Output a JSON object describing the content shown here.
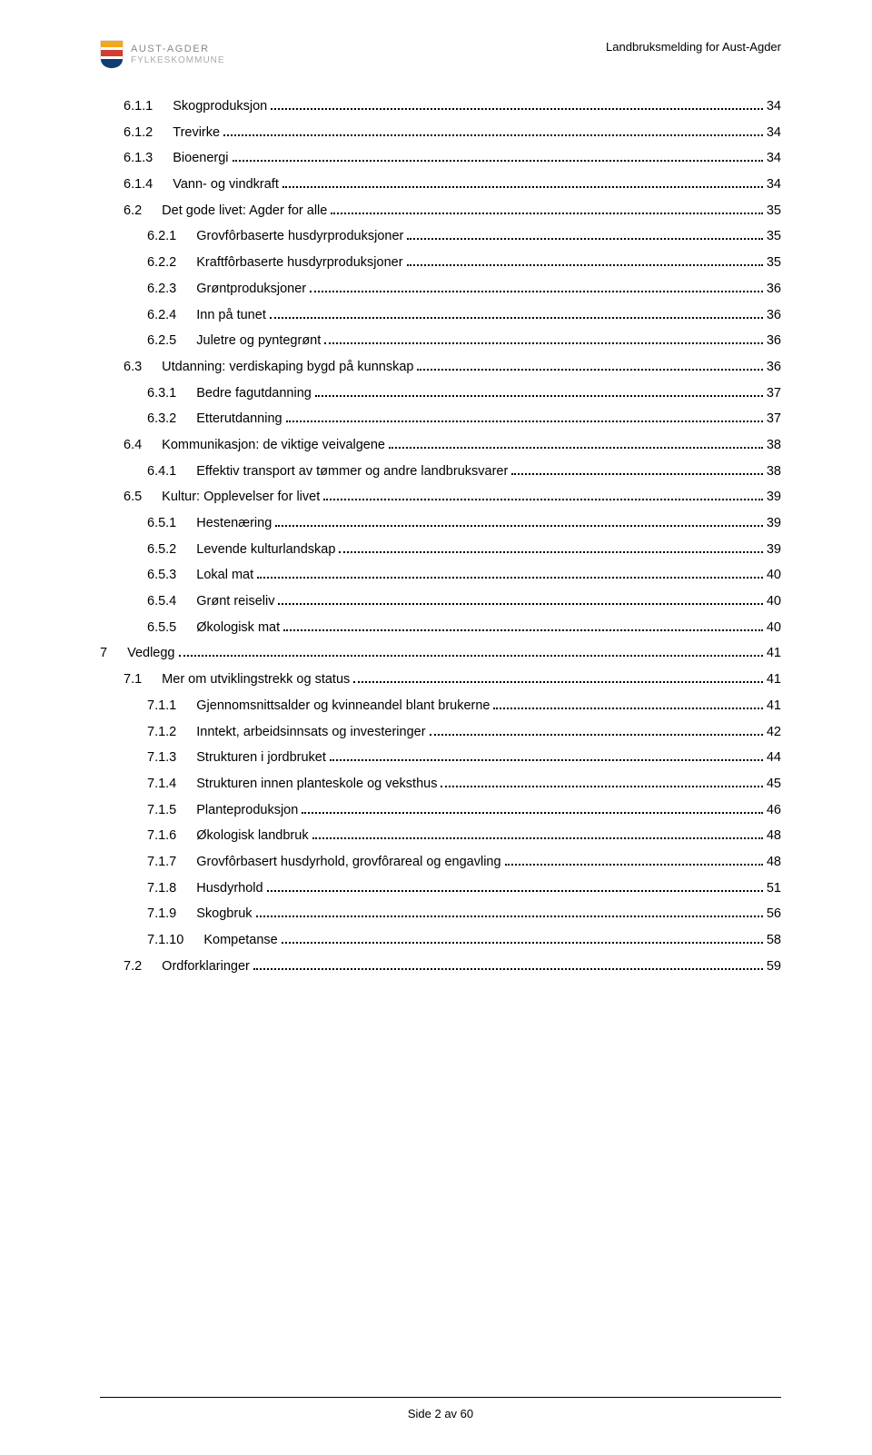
{
  "header": {
    "org_line1": "AUST-AGDER",
    "org_line2": "FYLKESKOMMUNE",
    "doc_title": "Landbruksmelding for Aust-Agder",
    "shield_colors": {
      "top": "#f2a81d",
      "mid": "#d13c2e",
      "bot": "#0f3e73",
      "white": "#ffffff"
    }
  },
  "toc": [
    {
      "indent": 1,
      "num": "6.1.1",
      "title": "Skogproduksjon",
      "page": "34"
    },
    {
      "indent": 1,
      "num": "6.1.2",
      "title": "Trevirke",
      "page": "34"
    },
    {
      "indent": 1,
      "num": "6.1.3",
      "title": "Bioenergi",
      "page": "34"
    },
    {
      "indent": 1,
      "num": "6.1.4",
      "title": "Vann- og vindkraft",
      "page": "34"
    },
    {
      "indent": 1,
      "num": "6.2",
      "title": "Det gode livet: Agder for alle",
      "page": "35"
    },
    {
      "indent": 2,
      "num": "6.2.1",
      "title": "Grovfôrbaserte husdyrproduksjoner",
      "page": "35"
    },
    {
      "indent": 2,
      "num": "6.2.2",
      "title": "Kraftfôrbaserte husdyrproduksjoner",
      "page": "35"
    },
    {
      "indent": 2,
      "num": "6.2.3",
      "title": "Grøntproduksjoner",
      "page": "36"
    },
    {
      "indent": 2,
      "num": "6.2.4",
      "title": "Inn på tunet",
      "page": "36"
    },
    {
      "indent": 2,
      "num": "6.2.5",
      "title": "Juletre og pyntegrønt",
      "page": "36"
    },
    {
      "indent": 1,
      "num": "6.3",
      "title": "Utdanning: verdiskaping bygd på kunnskap",
      "page": "36"
    },
    {
      "indent": 2,
      "num": "6.3.1",
      "title": "Bedre fagutdanning",
      "page": "37"
    },
    {
      "indent": 2,
      "num": "6.3.2",
      "title": "Etterutdanning",
      "page": "37"
    },
    {
      "indent": 1,
      "num": "6.4",
      "title": "Kommunikasjon: de viktige veivalgene",
      "page": "38"
    },
    {
      "indent": 2,
      "num": "6.4.1",
      "title": "Effektiv transport av tømmer og andre landbruksvarer",
      "page": "38"
    },
    {
      "indent": 1,
      "num": "6.5",
      "title": "Kultur: Opplevelser for livet",
      "page": "39"
    },
    {
      "indent": 2,
      "num": "6.5.1",
      "title": "Hestenæring",
      "page": "39"
    },
    {
      "indent": 2,
      "num": "6.5.2",
      "title": "Levende kulturlandskap",
      "page": "39"
    },
    {
      "indent": 2,
      "num": "6.5.3",
      "title": "Lokal mat",
      "page": "40"
    },
    {
      "indent": 2,
      "num": "6.5.4",
      "title": "Grønt reiseliv",
      "page": "40"
    },
    {
      "indent": 2,
      "num": "6.5.5",
      "title": "Økologisk mat",
      "page": "40"
    },
    {
      "indent": 0,
      "num": "7",
      "title": "Vedlegg",
      "page": "41"
    },
    {
      "indent": 1,
      "num": "7.1",
      "title": "Mer om utviklingstrekk og status",
      "page": "41"
    },
    {
      "indent": 2,
      "num": "7.1.1",
      "title": "Gjennomsnittsalder og kvinneandel blant brukerne",
      "page": "41"
    },
    {
      "indent": 2,
      "num": "7.1.2",
      "title": "Inntekt, arbeidsinnsats og investeringer",
      "page": "42"
    },
    {
      "indent": 2,
      "num": "7.1.3",
      "title": "Strukturen i jordbruket",
      "page": "44"
    },
    {
      "indent": 2,
      "num": "7.1.4",
      "title": "Strukturen innen planteskole og veksthus",
      "page": "45"
    },
    {
      "indent": 2,
      "num": "7.1.5",
      "title": "Planteproduksjon",
      "page": "46"
    },
    {
      "indent": 2,
      "num": "7.1.6",
      "title": "Økologisk landbruk",
      "page": "48"
    },
    {
      "indent": 2,
      "num": "7.1.7",
      "title": "Grovfôrbasert husdyrhold, grovfôrareal og engavling",
      "page": "48"
    },
    {
      "indent": 2,
      "num": "7.1.8",
      "title": "Husdyrhold",
      "page": "51"
    },
    {
      "indent": 2,
      "num": "7.1.9",
      "title": "Skogbruk",
      "page": "56"
    },
    {
      "indent": 2,
      "num": "7.1.10",
      "title": "Kompetanse",
      "page": "58"
    },
    {
      "indent": 1,
      "num": "7.2",
      "title": "Ordforklaringer",
      "page": "59"
    }
  ],
  "footer": {
    "text": "Side 2 av 60"
  }
}
